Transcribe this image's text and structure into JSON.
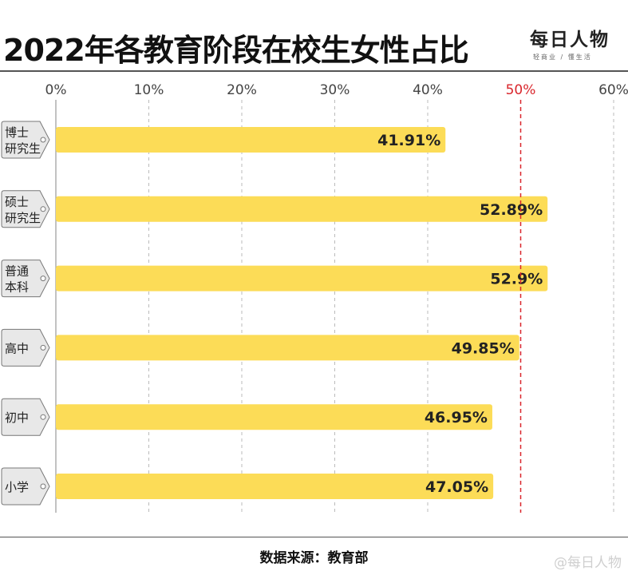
{
  "header": {
    "title": "2022年各教育阶段在校生女性占比",
    "brand_name": "每日人物",
    "brand_tagline": "轻商业 / 懂生活"
  },
  "footer": {
    "source": "数据来源：教育部",
    "watermark": "@每日人物"
  },
  "colors": {
    "bar": "#FCDC57",
    "reference_line": "#D9262C",
    "tag_fill": "#E8E8E8",
    "grid": "#BBBBBB"
  },
  "chart_data": {
    "type": "bar",
    "orientation": "horizontal",
    "title": "2022年各教育阶段在校生女性占比",
    "categories": [
      [
        "博士",
        "研究生"
      ],
      [
        "硕士",
        "研究生"
      ],
      [
        "普通",
        "本科"
      ],
      [
        "高中"
      ],
      [
        "初中"
      ],
      [
        "小学"
      ]
    ],
    "values": [
      41.91,
      52.89,
      52.9,
      49.85,
      46.95,
      47.05
    ],
    "value_labels": [
      "41.91%",
      "52.89%",
      "52.9%",
      "49.85%",
      "46.95%",
      "47.05%"
    ],
    "xlim": [
      0,
      60
    ],
    "ticks": [
      0,
      10,
      20,
      30,
      40,
      50,
      60
    ],
    "tick_labels": [
      "0%",
      "10%",
      "20%",
      "30%",
      "40%",
      "50%",
      "60%"
    ],
    "reference_line": {
      "value": 50,
      "label": "50%",
      "style": "dashed"
    },
    "grid": true
  }
}
